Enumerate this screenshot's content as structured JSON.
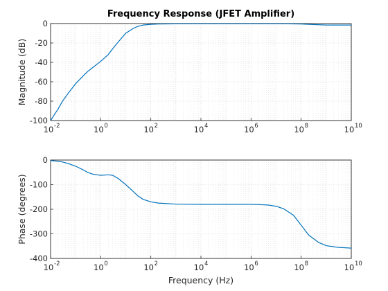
{
  "chart_data": [
    {
      "type": "line",
      "title": "Frequency Response (JFET Amplifier)",
      "xlabel": "",
      "ylabel": "Magnitude (dB)",
      "xscale": "log",
      "xlim": [
        0.01,
        10000000000
      ],
      "ylim": [
        -100,
        0
      ],
      "grid": "on (major and minor)",
      "x_ticks": [
        0.01,
        1,
        100,
        10000,
        1000000,
        100000000,
        10000000000
      ],
      "x_tick_labels": [
        "10",
        "10",
        "10",
        "10",
        "10",
        "10",
        "10"
      ],
      "x_tick_exponents": [
        "-2",
        "0",
        "2",
        "4",
        "6",
        "8",
        "10"
      ],
      "y_ticks": [
        -100,
        -80,
        -60,
        -40,
        -20,
        0
      ],
      "y_tick_labels": [
        "-100",
        "-80",
        "-60",
        "-40",
        "-20",
        "0"
      ],
      "color": "#0072bd",
      "series": [
        {
          "x": [
            0.01,
            0.02,
            0.03,
            0.05,
            0.1,
            0.2,
            0.3,
            0.5,
            1,
            2,
            3,
            5,
            10,
            20,
            30,
            50,
            100,
            200,
            1000,
            10000,
            100000,
            1000000,
            10000000,
            30000000,
            100000000,
            300000000,
            1000000000,
            10000000000
          ],
          "y": [
            -100,
            -88,
            -80,
            -72,
            -62,
            -54,
            -49.5,
            -45,
            -39,
            -32,
            -26,
            -19,
            -10,
            -5,
            -3,
            -1.5,
            -0.8,
            -0.5,
            -0.3,
            -0.3,
            -0.3,
            -0.3,
            -0.3,
            -0.3,
            -0.5,
            -1,
            -1.5,
            -1.5
          ]
        }
      ]
    },
    {
      "type": "line",
      "title": "",
      "xlabel": "Frequency (Hz)",
      "ylabel": "Phase (degrees)",
      "xscale": "log",
      "xlim": [
        0.01,
        10000000000
      ],
      "ylim": [
        -400,
        0
      ],
      "grid": "on (major and minor)",
      "x_ticks": [
        0.01,
        1,
        100,
        10000,
        1000000,
        100000000,
        10000000000
      ],
      "x_tick_labels": [
        "10",
        "10",
        "10",
        "10",
        "10",
        "10",
        "10"
      ],
      "x_tick_exponents": [
        "-2",
        "0",
        "2",
        "4",
        "6",
        "8",
        "10"
      ],
      "y_ticks": [
        -400,
        -300,
        -200,
        -100,
        0
      ],
      "y_tick_labels": [
        "-400",
        "-300",
        "-200",
        "-100",
        "0"
      ],
      "color": "#0072bd",
      "series": [
        {
          "x": [
            0.01,
            0.02,
            0.03,
            0.05,
            0.1,
            0.2,
            0.3,
            0.5,
            1,
            2,
            3,
            5,
            10,
            20,
            30,
            50,
            100,
            200,
            1000,
            10000,
            100000,
            1000000,
            2000000,
            5000000,
            10000000,
            20000000,
            50000000,
            100000000,
            200000000,
            500000000,
            1000000000,
            3000000000,
            10000000000
          ],
          "y": [
            -2,
            -5,
            -8,
            -14,
            -25,
            -40,
            -50,
            -58,
            -62,
            -60,
            -62,
            -75,
            -100,
            -128,
            -145,
            -160,
            -170,
            -175,
            -179,
            -180,
            -180,
            -180,
            -181,
            -183,
            -188,
            -198,
            -225,
            -265,
            -305,
            -335,
            -348,
            -355,
            -358
          ]
        }
      ]
    }
  ]
}
